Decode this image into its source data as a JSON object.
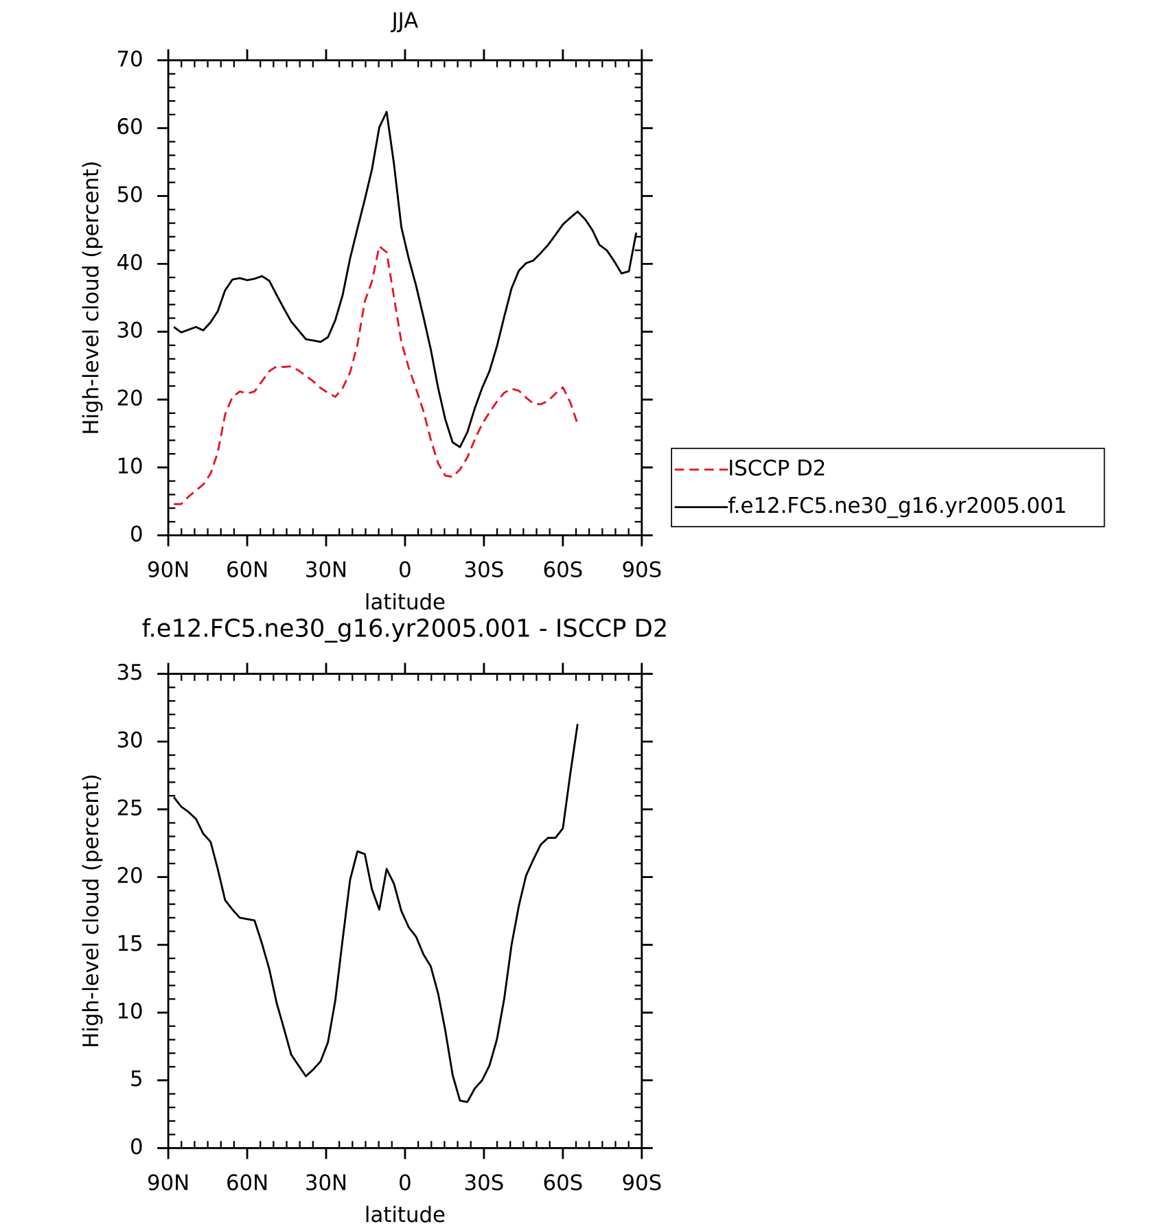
{
  "chart_data": [
    {
      "type": "line",
      "title": "JJA",
      "xlabel": "latitude",
      "ylabel": "High-level cloud (percent)",
      "x": [
        87.9,
        85.1,
        82.3,
        79.5,
        76.7,
        73.9,
        71.2,
        68.4,
        65.6,
        62.8,
        60.0,
        57.2,
        54.4,
        51.6,
        48.8,
        46.0,
        43.3,
        40.5,
        37.7,
        34.9,
        32.1,
        29.3,
        26.5,
        23.7,
        20.9,
        18.1,
        15.3,
        12.6,
        9.8,
        7.0,
        4.2,
        1.4,
        -1.4,
        -4.2,
        -7.0,
        -9.8,
        -12.6,
        -15.3,
        -18.1,
        -20.9,
        -23.7,
        -26.5,
        -29.3,
        -32.1,
        -34.9,
        -37.7,
        -40.5,
        -43.3,
        -46.0,
        -48.8,
        -51.6,
        -54.4,
        -57.2,
        -60.0,
        -62.8,
        -65.6,
        -68.4,
        -71.2,
        -73.9,
        -76.7,
        -79.5,
        -82.3,
        -85.1,
        -87.9
      ],
      "series": [
        {
          "name": "ISCCP D2",
          "color": "#e8141e",
          "dash": true,
          "values": [
            4.6,
            4.6,
            5.7,
            6.6,
            7.5,
            9.1,
            12.2,
            17.8,
            20.4,
            21.2,
            20.9,
            21.2,
            22.7,
            24.2,
            24.9,
            24.8,
            24.9,
            24.3,
            23.5,
            22.7,
            21.7,
            21.0,
            20.4,
            21.7,
            24.0,
            28.1,
            34.5,
            37.4,
            42.6,
            41.7,
            35.1,
            28.5,
            24.7,
            21.6,
            18.3,
            14.1,
            10.6,
            8.8,
            8.6,
            9.7,
            11.5,
            14.1,
            16.4,
            18.1,
            19.7,
            21.0,
            21.6,
            21.3,
            20.3,
            19.4,
            19.3,
            19.8,
            20.9,
            21.8,
            19.6,
            16.4,
            null,
            null,
            null,
            null,
            null,
            null,
            null,
            null
          ]
        },
        {
          "name": "f.e12.FC5.ne30_g16.yr2005.001",
          "color": "#000000",
          "dash": false,
          "values": [
            30.7,
            29.9,
            30.3,
            30.7,
            30.2,
            31.4,
            33.0,
            36.1,
            37.7,
            37.9,
            37.6,
            37.8,
            38.2,
            37.5,
            35.4,
            33.4,
            31.5,
            30.2,
            28.9,
            28.7,
            28.5,
            29.2,
            31.7,
            35.4,
            40.8,
            45.2,
            49.5,
            53.9,
            60.1,
            62.4,
            54.7,
            45.4,
            40.8,
            36.8,
            32.2,
            27.4,
            21.7,
            17.1,
            13.7,
            13.0,
            15.2,
            18.7,
            21.7,
            24.2,
            27.8,
            32.2,
            36.4,
            39.0,
            40.1,
            40.5,
            41.6,
            42.8,
            44.3,
            45.8,
            46.8,
            47.7,
            46.6,
            45.0,
            42.8,
            42.0,
            40.4,
            38.6,
            38.9,
            44.6
          ]
        }
      ],
      "xlim": [
        90,
        -90
      ],
      "xticks": [
        {
          "value": 90,
          "label": "90N"
        },
        {
          "value": 60,
          "label": "60N"
        },
        {
          "value": 30,
          "label": "30N"
        },
        0,
        {
          "value": -30,
          "label": "30S"
        },
        {
          "value": -60,
          "label": "60S"
        },
        {
          "value": -90,
          "label": "90S"
        }
      ],
      "ylim": [
        0,
        70
      ],
      "yticks": [
        0,
        10,
        20,
        30,
        40,
        50,
        60,
        70
      ],
      "legend": "right"
    },
    {
      "type": "line",
      "title": "f.e12.FC5.ne30_g16.yr2005.001 - ISCCP D2",
      "xlabel": "latitude",
      "ylabel": "High-level cloud (percent)",
      "x": [
        87.9,
        85.1,
        82.3,
        79.5,
        76.7,
        73.9,
        71.2,
        68.4,
        65.6,
        62.8,
        60.0,
        57.2,
        54.4,
        51.6,
        48.8,
        46.0,
        43.3,
        40.5,
        37.7,
        34.9,
        32.1,
        29.3,
        26.5,
        23.7,
        20.9,
        18.1,
        15.3,
        12.6,
        9.8,
        7.0,
        4.2,
        1.4,
        -1.4,
        -4.2,
        -7.0,
        -9.8,
        -12.6,
        -15.3,
        -18.1,
        -20.9,
        -23.7,
        -26.5,
        -29.3,
        -32.1,
        -34.9,
        -37.7,
        -40.5,
        -43.3,
        -46.0,
        -48.8,
        -51.6,
        -54.4,
        -57.2,
        -60.0,
        -62.8,
        -65.6
      ],
      "values": [
        25.9,
        25.2,
        24.8,
        24.3,
        23.2,
        22.6,
        20.6,
        18.3,
        17.6,
        17.0,
        16.9,
        16.8,
        15.1,
        13.2,
        10.7,
        8.8,
        6.9,
        6.1,
        5.3,
        5.8,
        6.4,
        7.8,
        10.9,
        15.4,
        19.8,
        21.9,
        21.7,
        19.1,
        17.6,
        20.6,
        19.5,
        17.5,
        16.3,
        15.6,
        14.3,
        13.4,
        11.4,
        8.7,
        5.4,
        3.5,
        3.4,
        4.4,
        5.0,
        6.1,
        8.0,
        11.0,
        15.0,
        17.9,
        20.1,
        21.3,
        22.4,
        22.9,
        22.9,
        23.6,
        27.6,
        31.3
      ],
      "color": "#000000",
      "xlim": [
        90,
        -90
      ],
      "xticks": [
        {
          "value": 90,
          "label": "90N"
        },
        {
          "value": 60,
          "label": "60N"
        },
        {
          "value": 30,
          "label": "30N"
        },
        0,
        {
          "value": -30,
          "label": "30S"
        },
        {
          "value": -60,
          "label": "60S"
        },
        {
          "value": -90,
          "label": "90S"
        }
      ],
      "ylim": [
        0,
        35
      ],
      "yticks": [
        0,
        5,
        10,
        15,
        20,
        25,
        30,
        35
      ]
    }
  ]
}
